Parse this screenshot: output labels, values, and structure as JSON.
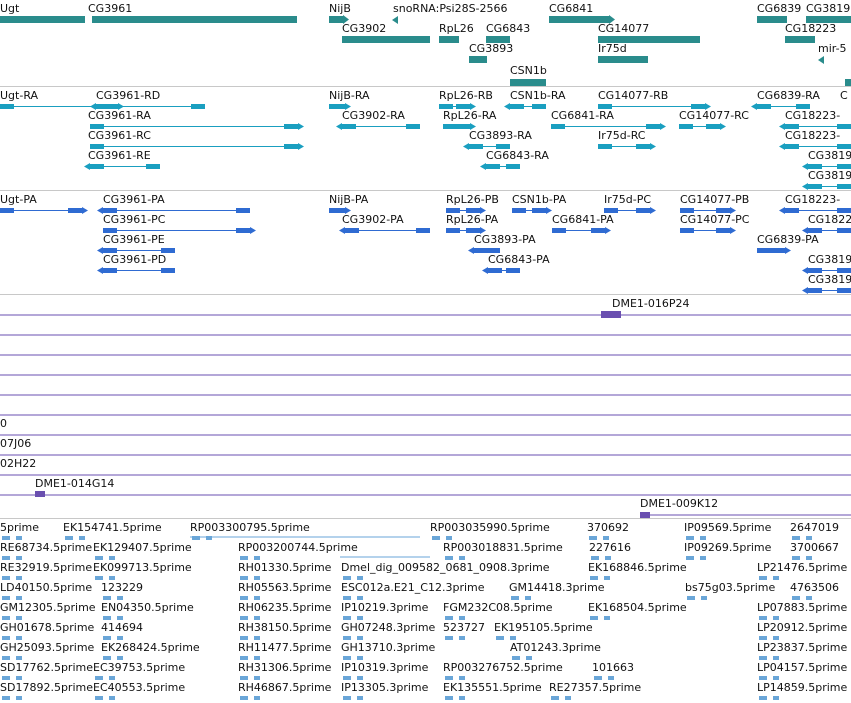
{
  "colors": {
    "gene": "#2a8c8c",
    "transcript": "#1a9fc0",
    "protein": "#2f6bd2",
    "clone": "#6a4fb0",
    "est": "#6aa6d8"
  },
  "tracks": {
    "genes": [
      "Ugt",
      "CG3961",
      "NijB",
      "snoRNA:Psi28S-2566",
      "CG6841",
      "CG6839",
      "CG3819",
      "CG3902",
      "RpL26",
      "CG6843",
      "CG14077",
      "CG18223",
      "CG3893",
      "Ir75d",
      "mir-5",
      "CSN1b"
    ],
    "transcripts": [
      "Ugt-RA",
      "CG3961-RD",
      "NijB-RA",
      "RpL26-RB",
      "CSN1b-RA",
      "CG14077-RB",
      "CG6839-RA",
      "C",
      "CG3961-RA",
      "CG3902-RA",
      "RpL26-RA",
      "CG6841-RA",
      "CG14077-RC",
      "CG18223-",
      "CG3961-RC",
      "CG3893-RA",
      "Ir75d-RC",
      "CG18223-",
      "CG3961-RE",
      "CG6843-RA",
      "CG3819",
      "CG3819"
    ],
    "proteins": [
      "Ugt-PA",
      "CG3961-PA",
      "NijB-PA",
      "RpL26-PB",
      "CSN1b-PA",
      "Ir75d-PC",
      "CG14077-PB",
      "CG18223-",
      "CG3961-PC",
      "CG3902-PA",
      "RpL26-PA",
      "CG6841-PA",
      "CG14077-PC",
      "CG18223",
      "CG3961-PE",
      "CG3893-PA",
      "CG6839-PA",
      "CG3961-PD",
      "CG6843-PA",
      "CG3819",
      "CG3819"
    ],
    "clones": [
      "DME1-016P24",
      "0",
      "07J06",
      "02H22",
      "DME1-014G14",
      "DME1-009K12"
    ],
    "ests": [
      "5prime",
      "EK154741.5prime",
      "RP003300795.5prime",
      "RP003035990.5prime",
      "370692",
      "IP09569.5prime",
      "2647019",
      "RE68734.5prime",
      "EK129407.5prime",
      "RP003200744.5prime",
      "RP003018831.5prime",
      "227616",
      "IP09269.5prime",
      "3700667",
      "RE32919.5prime",
      "EK099713.5prime",
      "RH01330.5prime",
      "Dmel_dig_009582_0681_0908.3prime",
      "EK168846.5prime",
      "LP21476.5prime",
      "LD40150.5prime",
      "123229",
      "RH05563.5prime",
      "ESC012a.E21_C12.3prime",
      "GM14418.3prime",
      "bs75g03.5prime",
      "4763506",
      "GM12305.5prime",
      "EN04350.5prime",
      "RH06235.5prime",
      "IP10219.3prime",
      "FGM232C08.5prime",
      "EK168504.5prime",
      "LP07883.5prime",
      "GH01678.5prime",
      "414694",
      "RH38150.5prime",
      "GH07248.3prime",
      "523727",
      "EK195105.5prime",
      "LP20912.5prime",
      "GH25093.5prime",
      "EK268424.5prime",
      "RH11477.5prime",
      "GH13710.3prime",
      "AT01243.3prime",
      "LP23837.5prime",
      "SD17762.5prime",
      "EC39753.5prime",
      "RH31306.5prime",
      "IP10319.3prime",
      "RP003276752.5prime",
      "101663",
      "LP04157.5prime",
      "SD17892.5prime",
      "EC40553.5prime",
      "RH46867.5prime",
      "IP13305.3prime",
      "EK135551.5prime",
      "RE27357.5prime",
      "LP14859.5prime"
    ]
  }
}
